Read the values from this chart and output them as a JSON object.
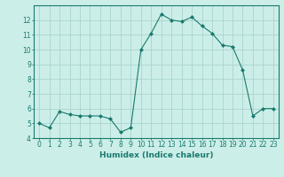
{
  "x": [
    0,
    1,
    2,
    3,
    4,
    5,
    6,
    7,
    8,
    9,
    10,
    11,
    12,
    13,
    14,
    15,
    16,
    17,
    18,
    19,
    20,
    21,
    22,
    23
  ],
  "y": [
    5.0,
    4.7,
    5.8,
    5.6,
    5.5,
    5.5,
    5.5,
    5.3,
    4.4,
    4.7,
    10.0,
    11.1,
    12.4,
    12.0,
    11.9,
    12.2,
    11.6,
    11.1,
    10.3,
    10.2,
    8.6,
    5.5,
    6.0,
    6.0
  ],
  "line_color": "#1a7a6e",
  "marker": "D",
  "marker_size": 2.0,
  "bg_color": "#cceee8",
  "grid_color": "#aad4ce",
  "xlabel": "Humidex (Indice chaleur)",
  "xlim": [
    -0.5,
    23.5
  ],
  "ylim": [
    4,
    13
  ],
  "yticks": [
    4,
    5,
    6,
    7,
    8,
    9,
    10,
    11,
    12
  ],
  "xticks": [
    0,
    1,
    2,
    3,
    4,
    5,
    6,
    7,
    8,
    9,
    10,
    11,
    12,
    13,
    14,
    15,
    16,
    17,
    18,
    19,
    20,
    21,
    22,
    23
  ],
  "tick_color": "#1a7a6e",
  "label_color": "#1a7a6e",
  "spine_color": "#1a7a6e",
  "tick_fontsize": 5.5,
  "xlabel_fontsize": 6.5
}
